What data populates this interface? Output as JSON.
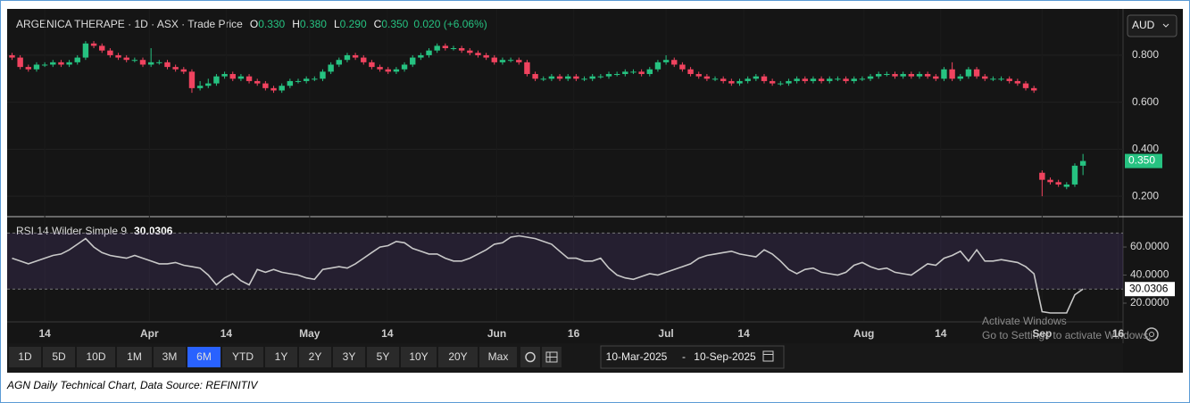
{
  "chart_data": {
    "type": "candlestick",
    "title": "ARGENICA THERAPE · 1D · ASX · Trade Price",
    "ohlc_legend": [
      {
        "label": "O",
        "value": "0.330"
      },
      {
        "label": "H",
        "value": "0.380"
      },
      {
        "label": "L",
        "value": "0.290"
      },
      {
        "label": "C",
        "value": "0.350"
      }
    ],
    "change": "0.020 (+6.06%)",
    "currency": "AUD",
    "up_color": "#26c281",
    "down_color": "#f0435f",
    "candles": [
      [
        0.8,
        0.81,
        0.78,
        0.79
      ],
      [
        0.79,
        0.8,
        0.74,
        0.75
      ],
      [
        0.75,
        0.76,
        0.73,
        0.74
      ],
      [
        0.74,
        0.77,
        0.73,
        0.76
      ],
      [
        0.76,
        0.77,
        0.75,
        0.76
      ],
      [
        0.76,
        0.78,
        0.75,
        0.77
      ],
      [
        0.77,
        0.78,
        0.75,
        0.76
      ],
      [
        0.76,
        0.78,
        0.75,
        0.77
      ],
      [
        0.77,
        0.8,
        0.76,
        0.79
      ],
      [
        0.79,
        0.86,
        0.78,
        0.85
      ],
      [
        0.85,
        0.86,
        0.83,
        0.84
      ],
      [
        0.84,
        0.85,
        0.81,
        0.82
      ],
      [
        0.82,
        0.83,
        0.79,
        0.8
      ],
      [
        0.8,
        0.81,
        0.78,
        0.79
      ],
      [
        0.79,
        0.8,
        0.77,
        0.78
      ],
      [
        0.78,
        0.79,
        0.77,
        0.78
      ],
      [
        0.78,
        0.79,
        0.75,
        0.76
      ],
      [
        0.76,
        0.83,
        0.75,
        0.77
      ],
      [
        0.77,
        0.78,
        0.76,
        0.77
      ],
      [
        0.77,
        0.78,
        0.74,
        0.75
      ],
      [
        0.75,
        0.76,
        0.73,
        0.74
      ],
      [
        0.74,
        0.75,
        0.72,
        0.73
      ],
      [
        0.73,
        0.74,
        0.64,
        0.66
      ],
      [
        0.66,
        0.69,
        0.65,
        0.67
      ],
      [
        0.67,
        0.7,
        0.66,
        0.68
      ],
      [
        0.68,
        0.72,
        0.67,
        0.71
      ],
      [
        0.71,
        0.73,
        0.7,
        0.72
      ],
      [
        0.72,
        0.73,
        0.69,
        0.7
      ],
      [
        0.7,
        0.72,
        0.69,
        0.71
      ],
      [
        0.71,
        0.72,
        0.68,
        0.69
      ],
      [
        0.69,
        0.7,
        0.67,
        0.68
      ],
      [
        0.68,
        0.69,
        0.65,
        0.66
      ],
      [
        0.66,
        0.67,
        0.64,
        0.65
      ],
      [
        0.65,
        0.68,
        0.64,
        0.67
      ],
      [
        0.67,
        0.7,
        0.66,
        0.69
      ],
      [
        0.69,
        0.7,
        0.68,
        0.69
      ],
      [
        0.69,
        0.71,
        0.68,
        0.7
      ],
      [
        0.7,
        0.71,
        0.69,
        0.7
      ],
      [
        0.7,
        0.74,
        0.69,
        0.73
      ],
      [
        0.73,
        0.77,
        0.72,
        0.76
      ],
      [
        0.76,
        0.79,
        0.75,
        0.78
      ],
      [
        0.78,
        0.81,
        0.77,
        0.8
      ],
      [
        0.8,
        0.81,
        0.78,
        0.79
      ],
      [
        0.79,
        0.8,
        0.76,
        0.77
      ],
      [
        0.77,
        0.78,
        0.74,
        0.75
      ],
      [
        0.75,
        0.76,
        0.73,
        0.74
      ],
      [
        0.74,
        0.75,
        0.72,
        0.73
      ],
      [
        0.73,
        0.75,
        0.72,
        0.74
      ],
      [
        0.74,
        0.77,
        0.73,
        0.76
      ],
      [
        0.76,
        0.8,
        0.75,
        0.79
      ],
      [
        0.79,
        0.81,
        0.78,
        0.8
      ],
      [
        0.8,
        0.83,
        0.79,
        0.82
      ],
      [
        0.82,
        0.85,
        0.81,
        0.84
      ],
      [
        0.84,
        0.85,
        0.82,
        0.83
      ],
      [
        0.83,
        0.84,
        0.82,
        0.83
      ],
      [
        0.83,
        0.84,
        0.81,
        0.82
      ],
      [
        0.82,
        0.83,
        0.8,
        0.81
      ],
      [
        0.81,
        0.82,
        0.79,
        0.8
      ],
      [
        0.8,
        0.81,
        0.78,
        0.79
      ],
      [
        0.79,
        0.8,
        0.76,
        0.77
      ],
      [
        0.77,
        0.79,
        0.76,
        0.78
      ],
      [
        0.78,
        0.79,
        0.77,
        0.78
      ],
      [
        0.78,
        0.79,
        0.76,
        0.77
      ],
      [
        0.77,
        0.78,
        0.71,
        0.72
      ],
      [
        0.72,
        0.73,
        0.69,
        0.7
      ],
      [
        0.7,
        0.71,
        0.69,
        0.7
      ],
      [
        0.7,
        0.72,
        0.69,
        0.71
      ],
      [
        0.71,
        0.72,
        0.69,
        0.7
      ],
      [
        0.7,
        0.72,
        0.69,
        0.71
      ],
      [
        0.71,
        0.72,
        0.69,
        0.7
      ],
      [
        0.7,
        0.71,
        0.69,
        0.7
      ],
      [
        0.7,
        0.72,
        0.69,
        0.71
      ],
      [
        0.71,
        0.72,
        0.7,
        0.71
      ],
      [
        0.71,
        0.73,
        0.7,
        0.72
      ],
      [
        0.72,
        0.73,
        0.71,
        0.72
      ],
      [
        0.72,
        0.74,
        0.71,
        0.73
      ],
      [
        0.73,
        0.74,
        0.72,
        0.73
      ],
      [
        0.73,
        0.74,
        0.71,
        0.72
      ],
      [
        0.72,
        0.75,
        0.71,
        0.74
      ],
      [
        0.74,
        0.78,
        0.73,
        0.77
      ],
      [
        0.77,
        0.8,
        0.76,
        0.78
      ],
      [
        0.78,
        0.79,
        0.75,
        0.76
      ],
      [
        0.76,
        0.77,
        0.73,
        0.74
      ],
      [
        0.74,
        0.75,
        0.71,
        0.72
      ],
      [
        0.72,
        0.73,
        0.7,
        0.71
      ],
      [
        0.71,
        0.72,
        0.69,
        0.7
      ],
      [
        0.7,
        0.71,
        0.69,
        0.7
      ],
      [
        0.7,
        0.71,
        0.68,
        0.69
      ],
      [
        0.69,
        0.7,
        0.67,
        0.68
      ],
      [
        0.68,
        0.7,
        0.67,
        0.69
      ],
      [
        0.69,
        0.71,
        0.68,
        0.7
      ],
      [
        0.7,
        0.72,
        0.69,
        0.71
      ],
      [
        0.71,
        0.72,
        0.68,
        0.69
      ],
      [
        0.69,
        0.7,
        0.67,
        0.68
      ],
      [
        0.68,
        0.69,
        0.67,
        0.68
      ],
      [
        0.68,
        0.7,
        0.67,
        0.69
      ],
      [
        0.69,
        0.71,
        0.68,
        0.7
      ],
      [
        0.7,
        0.71,
        0.68,
        0.69
      ],
      [
        0.69,
        0.71,
        0.68,
        0.7
      ],
      [
        0.7,
        0.71,
        0.68,
        0.69
      ],
      [
        0.69,
        0.71,
        0.68,
        0.7
      ],
      [
        0.7,
        0.71,
        0.69,
        0.7
      ],
      [
        0.7,
        0.71,
        0.68,
        0.69
      ],
      [
        0.69,
        0.71,
        0.68,
        0.7
      ],
      [
        0.7,
        0.71,
        0.69,
        0.7
      ],
      [
        0.7,
        0.72,
        0.69,
        0.71
      ],
      [
        0.71,
        0.73,
        0.7,
        0.72
      ],
      [
        0.72,
        0.73,
        0.71,
        0.72
      ],
      [
        0.72,
        0.73,
        0.7,
        0.71
      ],
      [
        0.71,
        0.73,
        0.7,
        0.72
      ],
      [
        0.72,
        0.73,
        0.7,
        0.71
      ],
      [
        0.71,
        0.73,
        0.7,
        0.72
      ],
      [
        0.72,
        0.73,
        0.7,
        0.71
      ],
      [
        0.71,
        0.72,
        0.69,
        0.7
      ],
      [
        0.7,
        0.75,
        0.69,
        0.74
      ],
      [
        0.74,
        0.77,
        0.69,
        0.7
      ],
      [
        0.7,
        0.72,
        0.69,
        0.71
      ],
      [
        0.71,
        0.75,
        0.7,
        0.74
      ],
      [
        0.74,
        0.75,
        0.7,
        0.71
      ],
      [
        0.71,
        0.72,
        0.69,
        0.7
      ],
      [
        0.7,
        0.71,
        0.69,
        0.7
      ],
      [
        0.7,
        0.71,
        0.69,
        0.7
      ],
      [
        0.7,
        0.71,
        0.68,
        0.69
      ],
      [
        0.69,
        0.7,
        0.67,
        0.68
      ],
      [
        0.68,
        0.69,
        0.65,
        0.66
      ],
      [
        0.66,
        0.67,
        0.64,
        0.65
      ],
      [
        0.3,
        0.31,
        0.2,
        0.27
      ],
      [
        0.27,
        0.28,
        0.25,
        0.26
      ],
      [
        0.26,
        0.27,
        0.24,
        0.25
      ],
      [
        0.24,
        0.26,
        0.23,
        0.25
      ],
      [
        0.25,
        0.34,
        0.24,
        0.33
      ],
      [
        0.33,
        0.38,
        0.29,
        0.35
      ]
    ],
    "xlim": [
      -0.6,
      135.9
    ],
    "xticks": [
      {
        "value": 4,
        "label": "14"
      },
      {
        "value": 16.8,
        "label": "Apr"
      },
      {
        "value": 26.2,
        "label": "14"
      },
      {
        "value": 36.4,
        "label": "May"
      },
      {
        "value": 45.9,
        "label": "14"
      },
      {
        "value": 59.3,
        "label": "Jun"
      },
      {
        "value": 68.7,
        "label": "16"
      },
      {
        "value": 80,
        "label": "Jul"
      },
      {
        "value": 89.5,
        "label": "14"
      },
      {
        "value": 104.2,
        "label": "Aug"
      },
      {
        "value": 113.6,
        "label": "14"
      },
      {
        "value": 126,
        "label": "Sep"
      },
      {
        "value": 135.3,
        "label": "16"
      }
    ],
    "ylim": [
      0.117,
      0.997
    ],
    "yticks": [
      {
        "value": 0.2,
        "label": "0.200"
      },
      {
        "value": 0.4,
        "label": "0.400"
      },
      {
        "value": 0.6,
        "label": "0.600"
      },
      {
        "value": 0.8,
        "label": "0.800"
      }
    ],
    "last_price": {
      "value": 0.35,
      "label": "0.350"
    },
    "indicator": {
      "type": "line",
      "label": "RSI 14 Wilder Simple 9",
      "color": "#c8c8c8",
      "values": [
        52,
        50,
        48,
        50,
        52,
        54,
        55,
        58,
        62,
        66,
        60,
        56,
        54,
        53,
        52,
        54,
        52,
        50,
        48,
        48,
        49,
        47,
        46,
        45,
        40,
        33,
        38,
        41,
        36,
        33,
        44,
        42,
        44,
        42,
        41,
        40,
        38,
        37,
        44,
        45,
        46,
        45,
        48,
        52,
        56,
        60,
        61,
        64,
        63,
        59,
        57,
        55,
        55,
        52,
        50,
        50,
        52,
        55,
        58,
        62,
        63,
        67,
        68,
        67,
        66,
        64,
        62,
        57,
        52,
        52,
        50,
        50,
        52,
        45,
        40,
        38,
        37,
        39,
        41,
        40,
        42,
        44,
        46,
        48,
        52,
        54,
        55,
        56,
        57,
        55,
        54,
        53,
        58,
        55,
        50,
        44,
        41,
        44,
        45,
        42,
        41,
        40,
        42,
        47,
        49,
        46,
        44,
        45,
        42,
        41,
        40,
        44,
        48,
        47,
        52,
        54,
        57,
        50,
        58,
        50,
        50,
        51,
        50,
        49,
        46,
        41,
        14,
        13,
        13,
        13,
        26,
        30.0306
      ],
      "ylim": [
        7.3,
        81
      ],
      "yticks": [
        {
          "value": 20,
          "label": "20.0000"
        },
        {
          "value": 40,
          "label": "40.0000"
        },
        {
          "value": 60,
          "label": "60.0000"
        }
      ],
      "levels": [
        30,
        70
      ],
      "last": {
        "value": 30.0306,
        "label": "30.0306"
      }
    }
  },
  "toolbar": {
    "ranges": [
      "1D",
      "5D",
      "10D",
      "1M",
      "3M",
      "6M",
      "YTD",
      "1Y",
      "2Y",
      "3Y",
      "5Y",
      "10Y",
      "20Y",
      "Max"
    ],
    "active": "6M",
    "date_from": "10-Mar-2025",
    "date_sep": "-",
    "date_to": "10-Sep-2025"
  },
  "watermark": {
    "title": "Activate Windows",
    "subtitle": "Go to Settings to activate Windows."
  },
  "caption": "AGN  Daily Technical Chart, Data Source: REFINITIV"
}
